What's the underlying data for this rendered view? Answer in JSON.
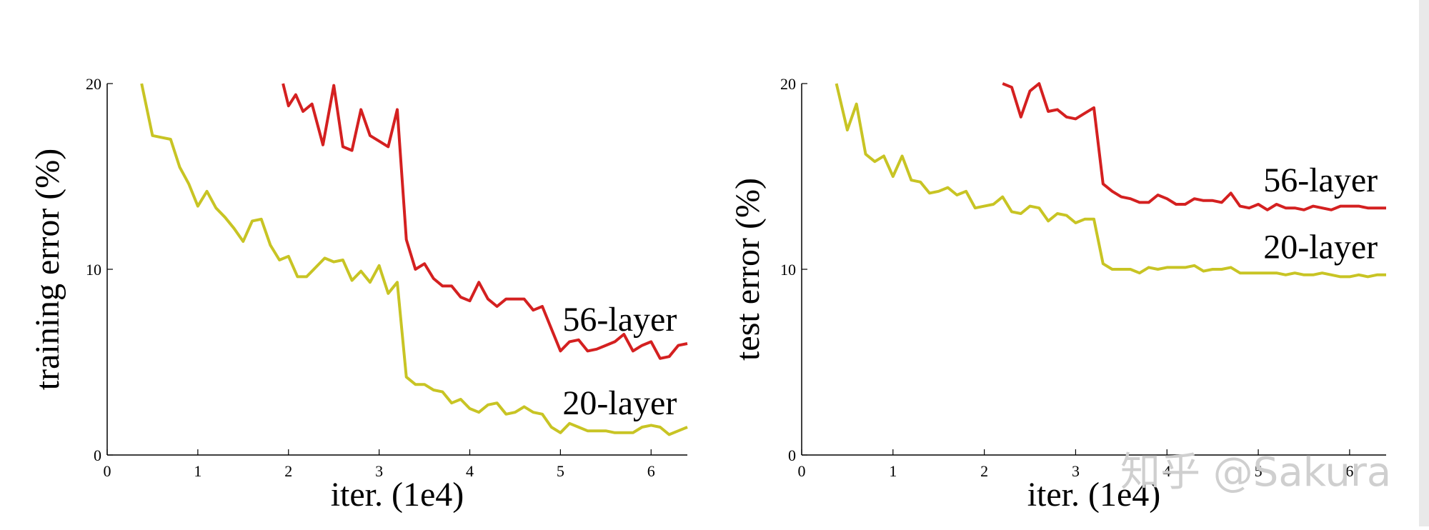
{
  "chart_data": [
    {
      "type": "line",
      "xlabel": "iter. (1e4)",
      "ylabel": "training error (%)",
      "xlim": [
        0,
        6.4
      ],
      "ylim": [
        0,
        20
      ],
      "xticks": [
        "0",
        "1",
        "2",
        "3",
        "4",
        "5",
        "6"
      ],
      "yticks": [
        "0",
        "10",
        "20"
      ],
      "series": [
        {
          "name": "56-layer",
          "color": "#d42020",
          "points": [
            [
              1.94,
              20.0
            ],
            [
              2.0,
              18.8
            ],
            [
              2.08,
              19.4
            ],
            [
              2.16,
              18.5
            ],
            [
              2.26,
              18.9
            ],
            [
              2.38,
              16.7
            ],
            [
              2.5,
              19.9
            ],
            [
              2.6,
              16.6
            ],
            [
              2.7,
              16.4
            ],
            [
              2.8,
              18.6
            ],
            [
              2.9,
              17.2
            ],
            [
              3.0,
              16.9
            ],
            [
              3.1,
              16.6
            ],
            [
              3.2,
              18.6
            ],
            [
              3.3,
              11.6
            ],
            [
              3.4,
              10.0
            ],
            [
              3.5,
              10.3
            ],
            [
              3.6,
              9.5
            ],
            [
              3.7,
              9.1
            ],
            [
              3.8,
              9.1
            ],
            [
              3.9,
              8.5
            ],
            [
              4.0,
              8.3
            ],
            [
              4.1,
              9.3
            ],
            [
              4.2,
              8.4
            ],
            [
              4.3,
              8.0
            ],
            [
              4.4,
              8.4
            ],
            [
              4.5,
              8.4
            ],
            [
              4.6,
              8.4
            ],
            [
              4.7,
              7.8
            ],
            [
              4.8,
              8.0
            ],
            [
              4.9,
              6.8
            ],
            [
              5.0,
              5.6
            ],
            [
              5.1,
              6.1
            ],
            [
              5.2,
              6.2
            ],
            [
              5.3,
              5.6
            ],
            [
              5.4,
              5.7
            ],
            [
              5.5,
              5.9
            ],
            [
              5.6,
              6.1
            ],
            [
              5.7,
              6.5
            ],
            [
              5.8,
              5.6
            ],
            [
              5.9,
              5.9
            ],
            [
              6.0,
              6.1
            ],
            [
              6.1,
              5.2
            ],
            [
              6.2,
              5.3
            ],
            [
              6.3,
              5.9
            ],
            [
              6.4,
              6.0
            ]
          ]
        },
        {
          "name": "20-layer",
          "color": "#c8c424",
          "points": [
            [
              0.38,
              20.0
            ],
            [
              0.5,
              17.2
            ],
            [
              0.6,
              17.1
            ],
            [
              0.7,
              17.0
            ],
            [
              0.8,
              15.5
            ],
            [
              0.9,
              14.6
            ],
            [
              1.0,
              13.4
            ],
            [
              1.1,
              14.2
            ],
            [
              1.2,
              13.3
            ],
            [
              1.3,
              12.8
            ],
            [
              1.4,
              12.2
            ],
            [
              1.5,
              11.5
            ],
            [
              1.6,
              12.6
            ],
            [
              1.7,
              12.7
            ],
            [
              1.8,
              11.3
            ],
            [
              1.9,
              10.5
            ],
            [
              2.0,
              10.7
            ],
            [
              2.1,
              9.6
            ],
            [
              2.2,
              9.6
            ],
            [
              2.3,
              10.1
            ],
            [
              2.4,
              10.6
            ],
            [
              2.5,
              10.4
            ],
            [
              2.6,
              10.5
            ],
            [
              2.7,
              9.4
            ],
            [
              2.8,
              9.9
            ],
            [
              2.9,
              9.3
            ],
            [
              3.0,
              10.2
            ],
            [
              3.1,
              8.7
            ],
            [
              3.2,
              9.3
            ],
            [
              3.3,
              4.2
            ],
            [
              3.4,
              3.8
            ],
            [
              3.5,
              3.8
            ],
            [
              3.6,
              3.5
            ],
            [
              3.7,
              3.4
            ],
            [
              3.8,
              2.8
            ],
            [
              3.9,
              3.0
            ],
            [
              4.0,
              2.5
            ],
            [
              4.1,
              2.3
            ],
            [
              4.2,
              2.7
            ],
            [
              4.3,
              2.8
            ],
            [
              4.4,
              2.2
            ],
            [
              4.5,
              2.3
            ],
            [
              4.6,
              2.6
            ],
            [
              4.7,
              2.3
            ],
            [
              4.8,
              2.2
            ],
            [
              4.9,
              1.5
            ],
            [
              5.0,
              1.2
            ],
            [
              5.1,
              1.7
            ],
            [
              5.2,
              1.5
            ],
            [
              5.3,
              1.3
            ],
            [
              5.4,
              1.3
            ],
            [
              5.5,
              1.3
            ],
            [
              5.6,
              1.2
            ],
            [
              5.7,
              1.2
            ],
            [
              5.8,
              1.2
            ],
            [
              5.9,
              1.5
            ],
            [
              6.0,
              1.6
            ],
            [
              6.1,
              1.5
            ],
            [
              6.2,
              1.1
            ],
            [
              6.3,
              1.3
            ],
            [
              6.4,
              1.5
            ]
          ]
        }
      ]
    },
    {
      "type": "line",
      "xlabel": "iter. (1e4)",
      "ylabel": "test error (%)",
      "xlim": [
        0,
        6.4
      ],
      "ylim": [
        0,
        20
      ],
      "xticks": [
        "0",
        "1",
        "2",
        "3",
        "4",
        "5",
        "6"
      ],
      "yticks": [
        "0",
        "10",
        "20"
      ],
      "series": [
        {
          "name": "56-layer",
          "color": "#d42020",
          "points": [
            [
              2.2,
              20.0
            ],
            [
              2.3,
              19.8
            ],
            [
              2.4,
              18.2
            ],
            [
              2.5,
              19.6
            ],
            [
              2.6,
              20.0
            ],
            [
              2.7,
              18.5
            ],
            [
              2.8,
              18.6
            ],
            [
              2.9,
              18.2
            ],
            [
              3.0,
              18.1
            ],
            [
              3.1,
              18.4
            ],
            [
              3.2,
              18.7
            ],
            [
              3.3,
              14.6
            ],
            [
              3.4,
              14.2
            ],
            [
              3.5,
              13.9
            ],
            [
              3.6,
              13.8
            ],
            [
              3.7,
              13.6
            ],
            [
              3.8,
              13.6
            ],
            [
              3.9,
              14.0
            ],
            [
              4.0,
              13.8
            ],
            [
              4.1,
              13.5
            ],
            [
              4.2,
              13.5
            ],
            [
              4.3,
              13.8
            ],
            [
              4.4,
              13.7
            ],
            [
              4.5,
              13.7
            ],
            [
              4.6,
              13.6
            ],
            [
              4.7,
              14.1
            ],
            [
              4.8,
              13.4
            ],
            [
              4.9,
              13.3
            ],
            [
              5.0,
              13.5
            ],
            [
              5.1,
              13.2
            ],
            [
              5.2,
              13.5
            ],
            [
              5.3,
              13.3
            ],
            [
              5.4,
              13.3
            ],
            [
              5.5,
              13.2
            ],
            [
              5.6,
              13.4
            ],
            [
              5.7,
              13.3
            ],
            [
              5.8,
              13.2
            ],
            [
              5.9,
              13.4
            ],
            [
              6.0,
              13.4
            ],
            [
              6.1,
              13.4
            ],
            [
              6.2,
              13.3
            ],
            [
              6.3,
              13.3
            ],
            [
              6.4,
              13.3
            ]
          ]
        },
        {
          "name": "20-layer",
          "color": "#c8c424",
          "points": [
            [
              0.38,
              20.0
            ],
            [
              0.5,
              17.5
            ],
            [
              0.6,
              18.9
            ],
            [
              0.7,
              16.2
            ],
            [
              0.8,
              15.8
            ],
            [
              0.9,
              16.1
            ],
            [
              1.0,
              15.0
            ],
            [
              1.1,
              16.1
            ],
            [
              1.2,
              14.8
            ],
            [
              1.3,
              14.7
            ],
            [
              1.4,
              14.1
            ],
            [
              1.5,
              14.2
            ],
            [
              1.6,
              14.4
            ],
            [
              1.7,
              14.0
            ],
            [
              1.8,
              14.2
            ],
            [
              1.9,
              13.3
            ],
            [
              2.0,
              13.4
            ],
            [
              2.1,
              13.5
            ],
            [
              2.2,
              13.9
            ],
            [
              2.3,
              13.1
            ],
            [
              2.4,
              13.0
            ],
            [
              2.5,
              13.4
            ],
            [
              2.6,
              13.3
            ],
            [
              2.7,
              12.6
            ],
            [
              2.8,
              13.0
            ],
            [
              2.9,
              12.9
            ],
            [
              3.0,
              12.5
            ],
            [
              3.1,
              12.7
            ],
            [
              3.2,
              12.7
            ],
            [
              3.3,
              10.3
            ],
            [
              3.4,
              10.0
            ],
            [
              3.5,
              10.0
            ],
            [
              3.6,
              10.0
            ],
            [
              3.7,
              9.8
            ],
            [
              3.8,
              10.1
            ],
            [
              3.9,
              10.0
            ],
            [
              4.0,
              10.1
            ],
            [
              4.1,
              10.1
            ],
            [
              4.2,
              10.1
            ],
            [
              4.3,
              10.2
            ],
            [
              4.4,
              9.9
            ],
            [
              4.5,
              10.0
            ],
            [
              4.6,
              10.0
            ],
            [
              4.7,
              10.1
            ],
            [
              4.8,
              9.8
            ],
            [
              4.9,
              9.8
            ],
            [
              5.0,
              9.8
            ],
            [
              5.1,
              9.8
            ],
            [
              5.2,
              9.8
            ],
            [
              5.3,
              9.7
            ],
            [
              5.4,
              9.8
            ],
            [
              5.5,
              9.7
            ],
            [
              5.6,
              9.7
            ],
            [
              5.7,
              9.8
            ],
            [
              5.8,
              9.7
            ],
            [
              5.9,
              9.6
            ],
            [
              6.0,
              9.6
            ],
            [
              6.1,
              9.7
            ],
            [
              6.2,
              9.6
            ],
            [
              6.3,
              9.7
            ],
            [
              6.4,
              9.7
            ]
          ]
        }
      ]
    }
  ],
  "watermark": "知乎 @Sakura"
}
